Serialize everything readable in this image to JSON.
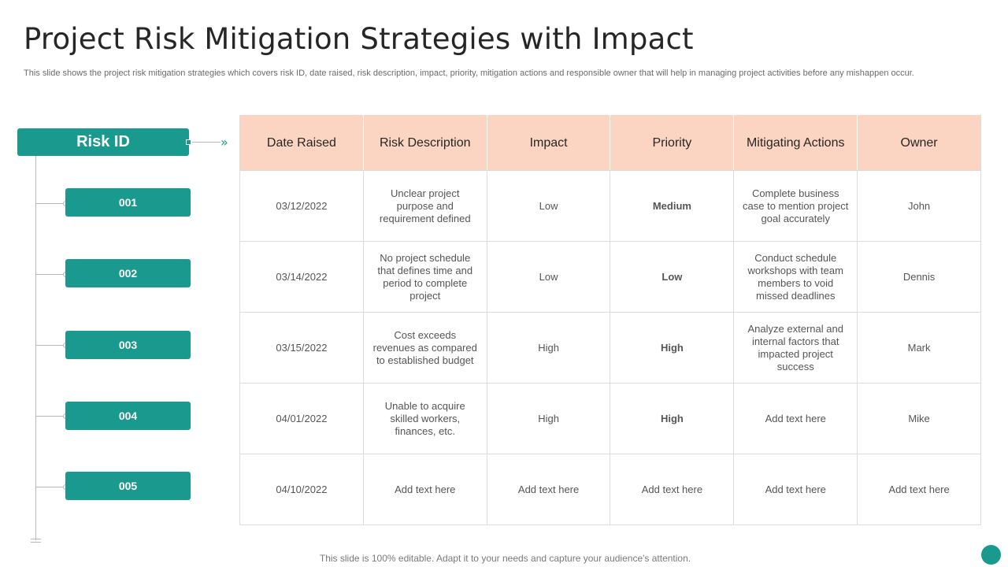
{
  "title": "Project Risk Mitigation Strategies with Impact",
  "subtitle": "This slide shows the project risk mitigation strategies which covers risk ID, date raised, risk description, impact, priority, mitigation actions and responsible owner that will help in managing project activities before any mishappen occur.",
  "risk_id_header": "Risk ID",
  "risk_ids": [
    "001",
    "002",
    "003",
    "004",
    "005"
  ],
  "table": {
    "headers": [
      "Date Raised",
      "Risk Description",
      "Impact",
      "Priority",
      "Mitigating Actions",
      "Owner"
    ],
    "rows": [
      [
        "03/12/2022",
        "Unclear project purpose and requirement defined",
        "Low",
        "Medium",
        "Complete business case to mention project goal accurately",
        "John"
      ],
      [
        "03/14/2022",
        "No project schedule that defines time and period to complete project",
        "Low",
        "Low",
        "Conduct schedule workshops with team members to void missed deadlines",
        "Dennis"
      ],
      [
        "03/15/2022",
        "Cost exceeds revenues as compared to established budget",
        "High",
        "High",
        "Analyze external and internal factors that impacted project success",
        "Mark"
      ],
      [
        "04/01/2022",
        "Unable to acquire skilled workers, finances, etc.",
        "High",
        "High",
        "Add text here",
        "Mike"
      ],
      [
        "04/10/2022",
        "Add text here",
        "Add text here",
        "Add text here",
        "Add text here",
        "Add text here"
      ]
    ]
  },
  "colors": {
    "accent": "#1a9a8f",
    "header_bg": "#fbd5c2",
    "priority_medium": "#8cc63f",
    "priority_low": "#e6c619",
    "priority_high": "#d9343a"
  },
  "footer": "This slide is 100% editable. Adapt it to your needs and capture your audience's attention."
}
